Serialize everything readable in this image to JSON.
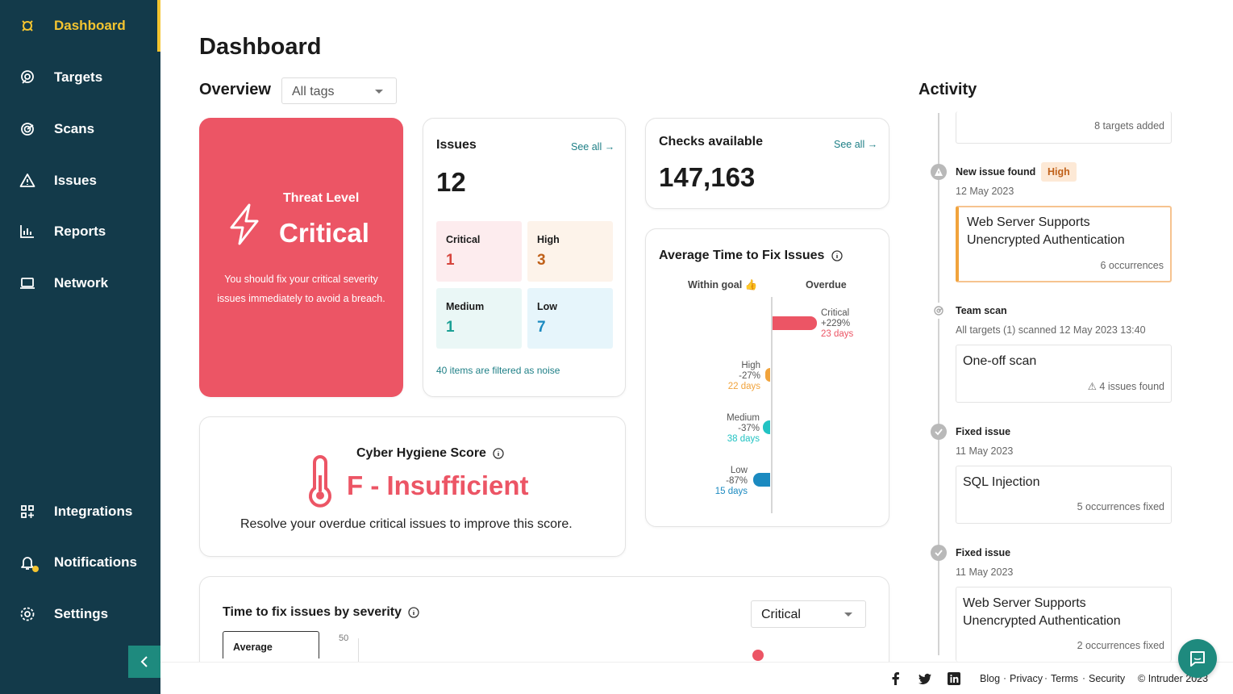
{
  "sidebar": {
    "items": [
      {
        "label": "Dashboard",
        "icon": "dashboard-icon"
      },
      {
        "label": "Targets",
        "icon": "target-icon"
      },
      {
        "label": "Scans",
        "icon": "scan-icon"
      },
      {
        "label": "Issues",
        "icon": "warning-icon"
      },
      {
        "label": "Reports",
        "icon": "chart-icon"
      },
      {
        "label": "Network",
        "icon": "laptop-icon"
      },
      {
        "label": "Integrations",
        "icon": "grid-icon"
      },
      {
        "label": "Notifications",
        "icon": "bell-icon"
      },
      {
        "label": "Settings",
        "icon": "gear-icon"
      }
    ],
    "active": "Dashboard",
    "accent_color": "#f4c430",
    "background": "#133a4a"
  },
  "page": {
    "title": "Dashboard"
  },
  "overview": {
    "title": "Overview",
    "tags_select": "All tags"
  },
  "threat": {
    "label": "Threat Level",
    "value": "Critical",
    "description": "You should fix your critical severity issues immediately to avoid a breach.",
    "color": "#ec5565"
  },
  "issues": {
    "title": "Issues",
    "see_all": "See all",
    "total": "12",
    "severities": [
      {
        "label": "Critical",
        "count": "1",
        "color": "#d6453d",
        "bg": "#fdecee"
      },
      {
        "label": "High",
        "count": "3",
        "color": "#c0611a",
        "bg": "#fdf3ea"
      },
      {
        "label": "Medium",
        "count": "1",
        "color": "#1ba095",
        "bg": "#eaf7f6"
      },
      {
        "label": "Low",
        "count": "7",
        "color": "#1b8ac0",
        "bg": "#e6f5fb"
      }
    ],
    "noise_note": "40 items are filtered as noise"
  },
  "checks": {
    "title": "Checks available",
    "see_all": "See all",
    "total": "147,163"
  },
  "avg_fix": {
    "title": "Average Time to Fix Issues",
    "within_goal": "Within goal",
    "overdue": "Overdue",
    "rows": [
      {
        "label": "Critical",
        "pct": "+229%",
        "days": "23 days",
        "color": "#ec5565"
      },
      {
        "label": "High",
        "pct": "-27%",
        "days": "22 days",
        "color": "#f1a33c"
      },
      {
        "label": "Medium",
        "pct": "-37%",
        "days": "38 days",
        "color": "#22c3c3"
      },
      {
        "label": "Low",
        "pct": "-87%",
        "days": "15 days",
        "color": "#1b8ac0"
      }
    ]
  },
  "hygiene": {
    "title": "Cyber Hygiene Score",
    "grade": "F - Insufficient",
    "description": "Resolve your overdue critical issues to improve this score."
  },
  "ttf": {
    "title": "Time to fix issues by severity",
    "severity_select": "Critical",
    "tab": "Average",
    "tick": "50"
  },
  "activity": {
    "title": "Activity",
    "top_card_meta": "8 targets added",
    "events": [
      {
        "head": "New issue found",
        "badge": "High",
        "date": "12 May 2023",
        "card_title": "Web Server Supports Unencrypted Authentication",
        "card_meta": "6 occurrences"
      },
      {
        "head": "Team scan",
        "date": "All targets (1) scanned 12 May 2023 13:40",
        "card_title": "One-off scan",
        "card_meta": "4 issues found"
      },
      {
        "head": "Fixed issue",
        "date": "11 May 2023",
        "card_title": "SQL Injection",
        "card_meta": "5 occurrences fixed"
      },
      {
        "head": "Fixed issue",
        "date": "11 May 2023",
        "card_title": "Web Server Supports Unencrypted Authentication",
        "card_meta": "2 occurrences fixed"
      }
    ]
  },
  "footer": {
    "links": [
      "Blog",
      "Privacy",
      "Terms",
      "Security"
    ],
    "copyright": "Intruder 2023"
  }
}
